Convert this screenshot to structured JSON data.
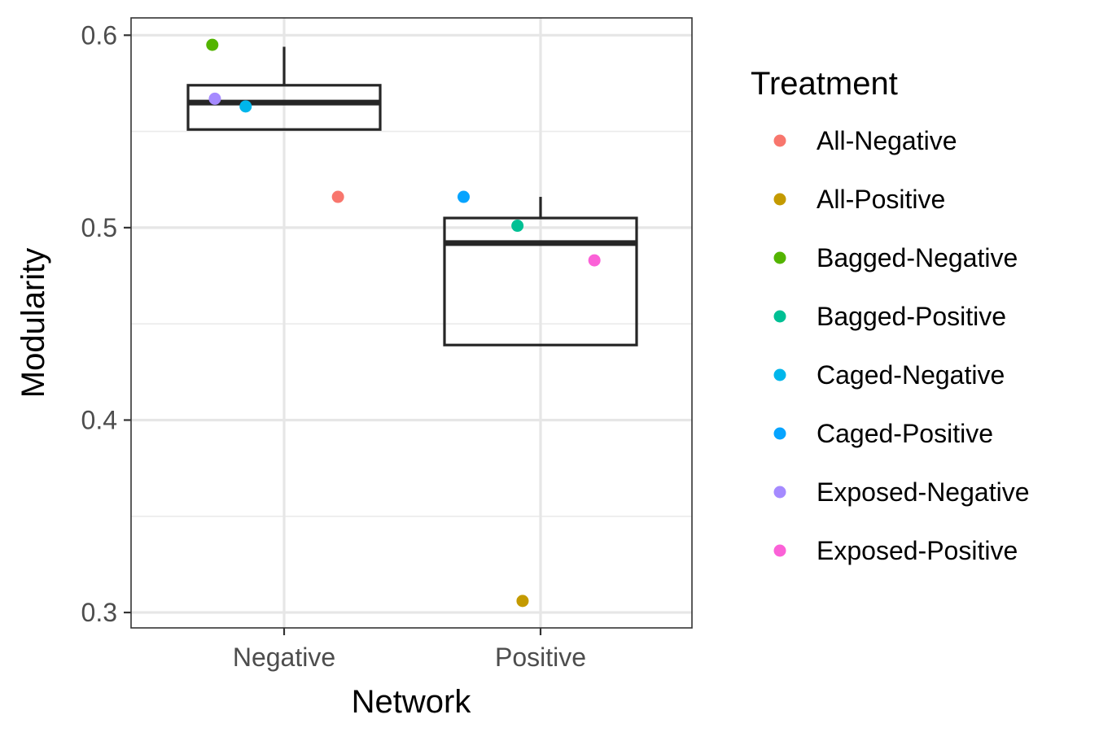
{
  "chart_data": {
    "type": "box+scatter",
    "xlabel": "Network",
    "ylabel": "Modularity",
    "categories": [
      "Negative",
      "Positive"
    ],
    "ylim": [
      0.292,
      0.609
    ],
    "yticks": [
      0.3,
      0.4,
      0.5,
      0.6
    ],
    "ytick_labels": [
      "0.3",
      "0.4",
      "0.5",
      "0.6"
    ],
    "grid": true,
    "legend": {
      "title": "Treatment",
      "position": "right",
      "entries": [
        {
          "label": "All-Negative",
          "color": "#F8766D"
        },
        {
          "label": "All-Positive",
          "color": "#C49A00"
        },
        {
          "label": "Bagged-Negative",
          "color": "#53B400"
        },
        {
          "label": "Bagged-Positive",
          "color": "#00C094"
        },
        {
          "label": "Caged-Negative",
          "color": "#00B6EB"
        },
        {
          "label": "Caged-Positive",
          "color": "#06A4FF"
        },
        {
          "label": "Exposed-Negative",
          "color": "#A58AFF"
        },
        {
          "label": "Exposed-Positive",
          "color": "#FB61D7"
        }
      ]
    },
    "boxes": [
      {
        "category": "Negative",
        "whisker_low": 0.551,
        "q1": 0.551,
        "median": 0.565,
        "q3": 0.574,
        "whisker_high": 0.594
      },
      {
        "category": "Positive",
        "whisker_low": 0.439,
        "q1": 0.439,
        "median": 0.492,
        "q3": 0.505,
        "whisker_high": 0.516
      }
    ],
    "points": [
      {
        "category": "Negative",
        "treatment": "Bagged-Negative",
        "jitter": -0.28,
        "y": 0.595
      },
      {
        "category": "Negative",
        "treatment": "Exposed-Negative",
        "jitter": -0.27,
        "y": 0.567
      },
      {
        "category": "Negative",
        "treatment": "Caged-Negative",
        "jitter": -0.15,
        "y": 0.563
      },
      {
        "category": "Negative",
        "treatment": "All-Negative",
        "jitter": 0.21,
        "y": 0.516
      },
      {
        "category": "Positive",
        "treatment": "Caged-Positive",
        "jitter": -0.3,
        "y": 0.516
      },
      {
        "category": "Positive",
        "treatment": "Bagged-Positive",
        "jitter": -0.09,
        "y": 0.501
      },
      {
        "category": "Positive",
        "treatment": "Exposed-Positive",
        "jitter": 0.21,
        "y": 0.483
      },
      {
        "category": "Positive",
        "treatment": "All-Positive",
        "jitter": -0.07,
        "y": 0.306
      }
    ]
  }
}
